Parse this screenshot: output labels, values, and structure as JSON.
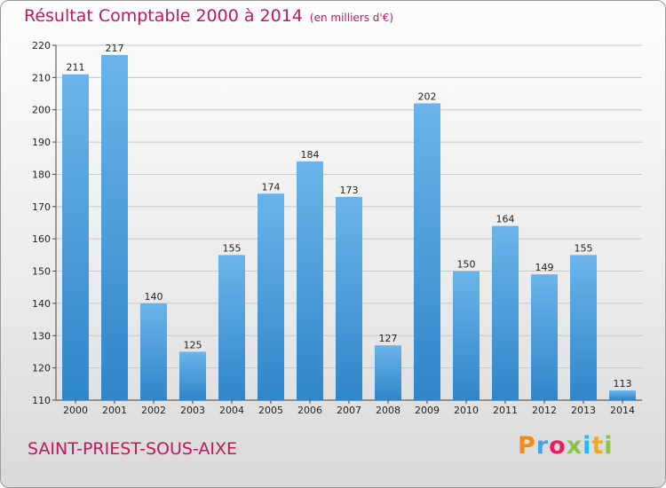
{
  "title": "Résultat Comptable 2000 à 2014",
  "unit": "(en milliers d'€)",
  "commune": "SAINT-PRIEST-SOUS-AIXE",
  "logo": {
    "text": "Proxiti",
    "colors": [
      "#f08a1c",
      "#4aa3df",
      "#e91e63",
      "#8bc34a",
      "#29b6f6",
      "#f6a81c",
      "#8bc34a"
    ]
  },
  "colors": {
    "title": "#c2185b",
    "bar_light": "#6ab4ea",
    "bar_dark": "#2f86c9"
  },
  "chart_data": {
    "type": "bar",
    "categories": [
      "2000",
      "2001",
      "2002",
      "2003",
      "2004",
      "2005",
      "2006",
      "2007",
      "2008",
      "2009",
      "2010",
      "2011",
      "2012",
      "2013",
      "2014"
    ],
    "values": [
      211,
      217,
      140,
      125,
      155,
      174,
      184,
      173,
      127,
      202,
      150,
      164,
      149,
      155,
      113
    ],
    "ylim": [
      110,
      220
    ],
    "yticks": [
      110,
      120,
      130,
      140,
      150,
      160,
      170,
      180,
      190,
      200,
      210,
      220
    ],
    "grid": true,
    "data_labels": true
  }
}
